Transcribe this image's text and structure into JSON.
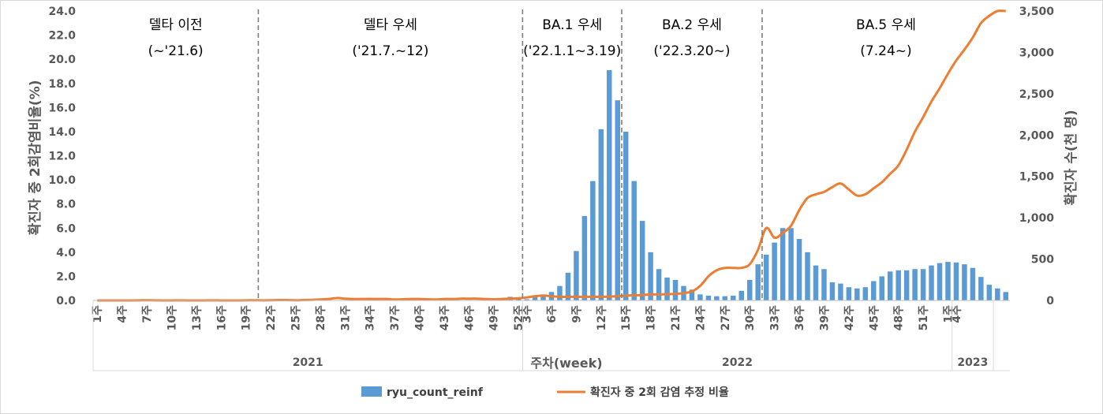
{
  "chart_data": {
    "type": "bar+line",
    "xlabel": "주차(week)",
    "ylabel_left": "확진자 중 2회감염비율(%)",
    "ylabel_right": "확진자 수(천 명)",
    "ylim_left": [
      0,
      24
    ],
    "ylim_right": [
      0,
      3500
    ],
    "yticks_left": [
      "0.0",
      "2.0",
      "4.0",
      "6.0",
      "8.0",
      "10.0",
      "12.0",
      "14.0",
      "16.0",
      "18.0",
      "20.0",
      "22.0",
      "24.0"
    ],
    "yticks_right": [
      "0",
      "500",
      "1,000",
      "1,500",
      "2,000",
      "2,500",
      "3,000",
      "3,500"
    ],
    "years": [
      {
        "label": "2021",
        "weeks": 52
      },
      {
        "label": "2022",
        "weeks": 52
      },
      {
        "label": "2023",
        "weeks": 5
      }
    ],
    "week_tick_labels": [
      "1주",
      "4주",
      "7주",
      "10주",
      "13주",
      "16주",
      "19주",
      "22주",
      "25주",
      "28주",
      "31주",
      "34주",
      "37주",
      "40주",
      "43주",
      "46주",
      "49주",
      "52주",
      "3주",
      "6주",
      "9주",
      "12주",
      "15주",
      "18주",
      "21주",
      "24주",
      "27주",
      "30주",
      "33주",
      "36주",
      "39주",
      "42주",
      "45주",
      "48주",
      "51주",
      "1주",
      "4주"
    ],
    "periods": [
      {
        "name": "델타 이전",
        "range": "(~'21.6)"
      },
      {
        "name": "델타 우세",
        "range": "('21.7.~12)"
      },
      {
        "name": "BA.1 우세",
        "range": "('22.1.1~3.19)"
      },
      {
        "name": "BA.2 우세",
        "range": "('22.3.20~)"
      },
      {
        "name": "BA.5 우세",
        "range": "(7.24~)"
      }
    ],
    "divider_after_week_index": [
      19.5,
      51.5,
      63.5,
      80.5
    ],
    "series": [
      {
        "name": "ryu_count_reinf",
        "axis": "left",
        "values": [
          0,
          0,
          0,
          0,
          0,
          0,
          0,
          0,
          0,
          0,
          0,
          0,
          0,
          0,
          0,
          0,
          0,
          0,
          0,
          0,
          0,
          0,
          0,
          0,
          0,
          0,
          0,
          0,
          0,
          0,
          0,
          0,
          0,
          0,
          0,
          0,
          0,
          0,
          0,
          0,
          0,
          0,
          0,
          0,
          0,
          0,
          0,
          0,
          0.1,
          0.2,
          0.3,
          0.2,
          0.1,
          0.3,
          0.5,
          0.7,
          1.2,
          2.3,
          4.1,
          7.0,
          9.9,
          14.2,
          19.1,
          16.6,
          14.0,
          9.9,
          6.6,
          4.0,
          2.6,
          1.9,
          1.7,
          1.2,
          0.9,
          0.5,
          0.4,
          0.35,
          0.35,
          0.4,
          0.8,
          1.7,
          3.0,
          3.8,
          4.8,
          6.0,
          6.0,
          5.1,
          4.0,
          2.9,
          2.6,
          1.5,
          1.4,
          1.1,
          1.0,
          1.1,
          1.6,
          2.0,
          2.4,
          2.5,
          2.5,
          2.6,
          2.6,
          2.9,
          3.1,
          3.2,
          3.15,
          3.0,
          2.7,
          1.95,
          1.3,
          1.0,
          0.7
        ]
      },
      {
        "name": "확진자 중 2회 감염 추정 비율",
        "axis": "left",
        "values": [
          0,
          0,
          0,
          0,
          0,
          0.01,
          0.02,
          0.01,
          0,
          0,
          0.01,
          0,
          0,
          0,
          0.01,
          0,
          0,
          0,
          0.01,
          0.02,
          0.01,
          0.02,
          0.03,
          0.03,
          0.02,
          0.03,
          0.05,
          0.08,
          0.12,
          0.2,
          0.15,
          0.12,
          0.12,
          0.13,
          0.12,
          0.12,
          0.08,
          0.1,
          0.12,
          0.12,
          0.1,
          0.08,
          0.12,
          0.12,
          0.15,
          0.15,
          0.15,
          0.12,
          0.1,
          0.12,
          0.15,
          0.18,
          0.25,
          0.35,
          0.4,
          0.35,
          0.3,
          0.3,
          0.3,
          0.3,
          0.3,
          0.3,
          0.32,
          0.35,
          0.4,
          0.42,
          0.45,
          0.5,
          0.5,
          0.52,
          0.55,
          0.6,
          0.75,
          1.2,
          2.0,
          2.5,
          2.7,
          2.7,
          2.7,
          3.0,
          4.2,
          6.0,
          5.2,
          5.6,
          6.2,
          7.5,
          8.5,
          8.8,
          9.0,
          9.4,
          9.7,
          9.2,
          8.7,
          8.8,
          9.3,
          9.8,
          10.5,
          11.2,
          12.5,
          14.0,
          15.2,
          16.5,
          17.6,
          18.8,
          19.9,
          20.8,
          21.8,
          23.0,
          23.6,
          24.0,
          24.0
        ]
      }
    ],
    "series_colors": [
      "#5b9bd5",
      "#ed7d31"
    ],
    "grid": false,
    "legend_position": "bottom"
  }
}
